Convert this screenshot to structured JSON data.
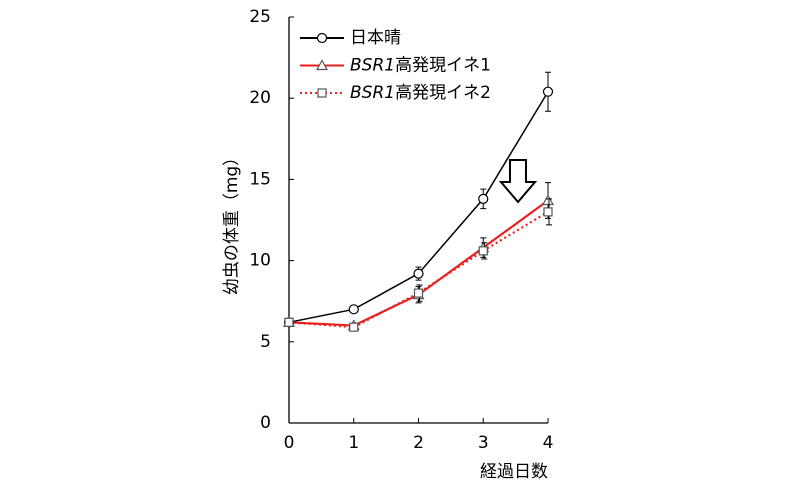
{
  "chart_data": {
    "type": "line",
    "xlabel": "経過日数",
    "ylabel": "幼虫の体重（mg）",
    "x": [
      0,
      1,
      2,
      3,
      4
    ],
    "xlim": [
      0,
      4
    ],
    "xticks": [
      0,
      1,
      2,
      3,
      4
    ],
    "ylim": [
      0,
      25
    ],
    "yticks": [
      0,
      5,
      10,
      15,
      20,
      25
    ],
    "legend": "upper left",
    "series": [
      {
        "name": "日本晴",
        "color": "#000000",
        "marker": "circle",
        "linestyle": "solid",
        "values": [
          6.2,
          7.0,
          9.2,
          13.8,
          20.4
        ],
        "errors": [
          0.1,
          0.1,
          0.4,
          0.6,
          1.2
        ]
      },
      {
        "name": "BSR1高発現イネ1",
        "color": "#e8201e",
        "marker": "triangle",
        "linestyle": "solid",
        "values": [
          6.2,
          6.0,
          7.9,
          10.8,
          13.7
        ],
        "errors": [
          0.1,
          0.1,
          0.5,
          0.6,
          1.1
        ]
      },
      {
        "name": "BSR1高発現イネ2",
        "color": "#e8201e",
        "marker": "square",
        "linestyle": "dotted",
        "values": [
          6.2,
          5.9,
          8.0,
          10.6,
          13.0
        ],
        "errors": [
          0.1,
          0.1,
          0.5,
          0.5,
          0.8
        ]
      }
    ]
  }
}
